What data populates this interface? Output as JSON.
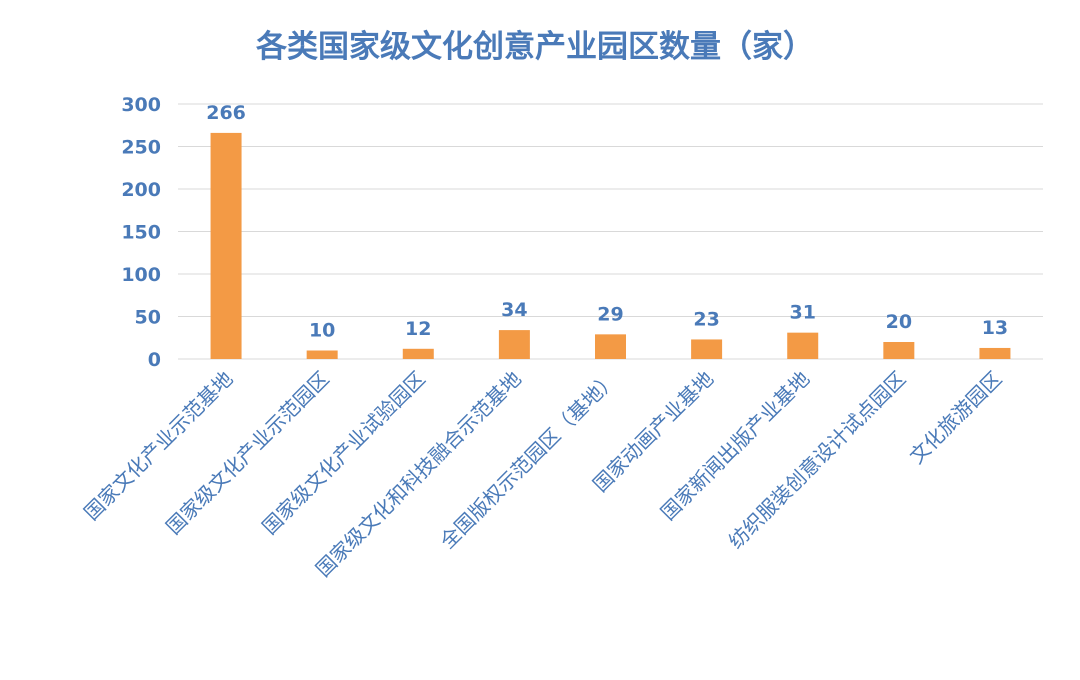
{
  "chart_data": {
    "type": "bar",
    "title": "各类国家级文化创意产业园区数量（家）",
    "xlabel": "",
    "ylabel": "",
    "categories": [
      "国家文化产业示范基地",
      "国家级文化产业示范园区",
      "国家级文化产业试验园区",
      "国家级文化和科技融合示范基地",
      "全国版权示范园区（基地）",
      "国家动画产业基地",
      "国家新闻出版产业基地",
      "纺织服装创意设计试点园区",
      "文化旅游园区"
    ],
    "values": [
      266,
      10,
      12,
      34,
      29,
      23,
      31,
      20,
      13
    ],
    "data_labels": [
      "266",
      "10",
      "12",
      "34",
      "29",
      "23",
      "31",
      "20",
      "13"
    ],
    "ylim": [
      0,
      300
    ],
    "yticks": [
      0,
      50,
      100,
      150,
      200,
      250,
      300
    ],
    "ytick_labels": [
      "0",
      "50",
      "100",
      "150",
      "200",
      "250",
      "300"
    ],
    "grid": true,
    "legend": "none",
    "bar_color": "#f39a45",
    "text_color": "#4a7ab8",
    "grid_color": "#d9d9d9"
  }
}
